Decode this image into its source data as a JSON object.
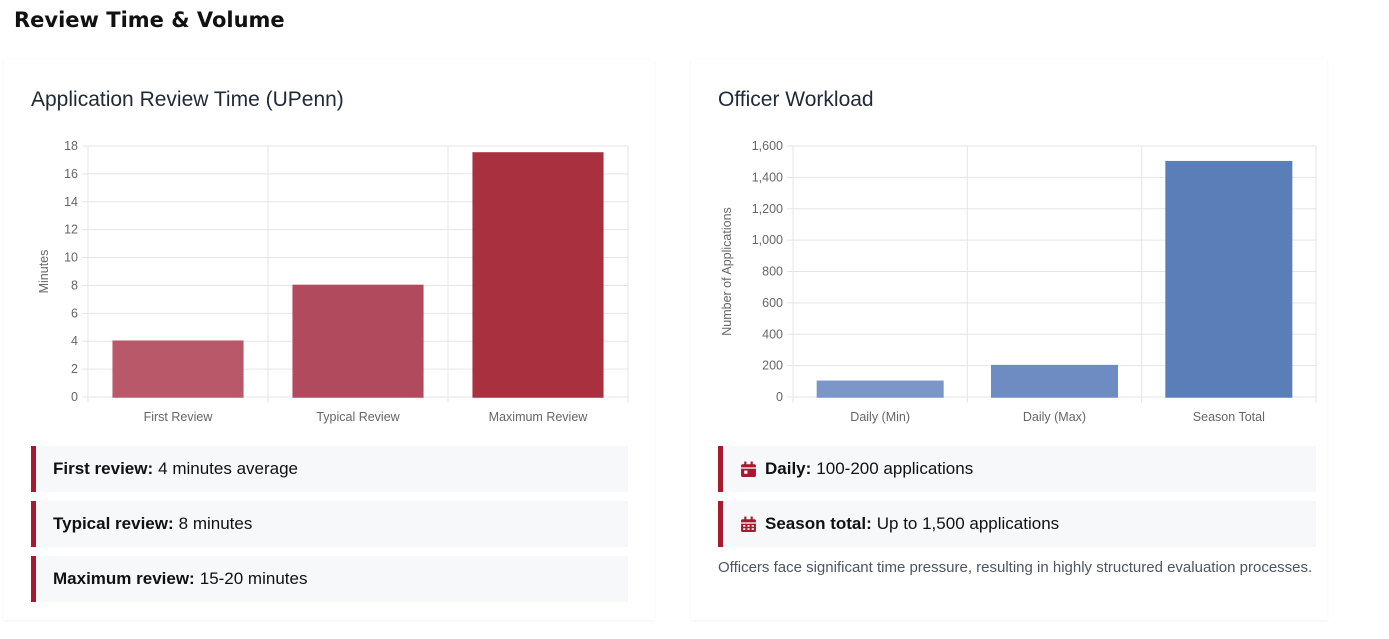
{
  "section_title": "Review Time & Volume",
  "colors": {
    "accent": "#a6192e",
    "review_bars": [
      "#b85868",
      "#b04a5c",
      "#a8303f"
    ],
    "workload_bars": [
      "#7b96c8",
      "#6f8cc2",
      "#5a7fb8"
    ],
    "grid": "#e5e5e5"
  },
  "left_card": {
    "title": "Application Review Time (UPenn)",
    "notes": [
      {
        "label": "First review:",
        "text": "4 minutes average"
      },
      {
        "label": "Typical review:",
        "text": "8 minutes"
      },
      {
        "label": "Maximum review:",
        "text": "15-20 minutes"
      }
    ]
  },
  "right_card": {
    "title": "Officer Workload",
    "notes": [
      {
        "icon": "calendar-icon",
        "label": "Daily:",
        "text": "100-200 applications"
      },
      {
        "icon": "calendar-grid-icon",
        "label": "Season total:",
        "text": "Up to 1,500 applications"
      }
    ],
    "footnote": "Officers face significant time pressure, resulting in highly structured evaluation processes."
  },
  "chart_data": [
    {
      "type": "bar",
      "title": "Application Review Time (UPenn)",
      "categories": [
        "First Review",
        "Typical Review",
        "Maximum Review"
      ],
      "values": [
        4,
        8,
        17.5
      ],
      "xlabel": "",
      "ylabel": "Minutes",
      "ylim": [
        0,
        18
      ],
      "yticks": [
        0,
        2,
        4,
        6,
        8,
        10,
        12,
        14,
        16,
        18
      ],
      "ytick_labels": [
        "0",
        "2",
        "4",
        "6",
        "8",
        "10",
        "12",
        "14",
        "16",
        "18"
      ],
      "grid": true,
      "legend": "none"
    },
    {
      "type": "bar",
      "title": "Officer Workload",
      "categories": [
        "Daily (Min)",
        "Daily (Max)",
        "Season Total"
      ],
      "values": [
        100,
        200,
        1500
      ],
      "xlabel": "",
      "ylabel": "Number of Applications",
      "ylim": [
        0,
        1600
      ],
      "yticks": [
        0,
        200,
        400,
        600,
        800,
        1000,
        1200,
        1400,
        1600
      ],
      "ytick_labels": [
        "0",
        "200",
        "400",
        "600",
        "800",
        "1,000",
        "1,200",
        "1,400",
        "1,600"
      ],
      "grid": true,
      "legend": "none"
    }
  ]
}
